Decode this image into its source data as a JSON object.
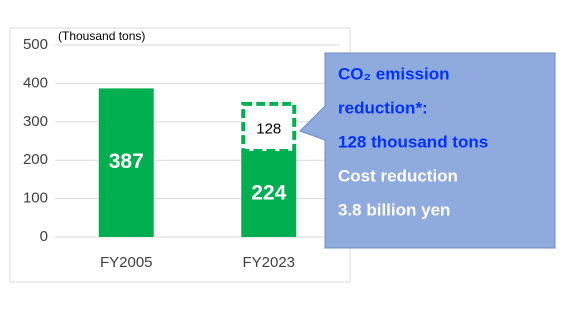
{
  "chart_data": {
    "type": "bar",
    "ylabel": "(Thousand tons)",
    "categories": [
      "FY2005",
      "FY2023"
    ],
    "series": [
      {
        "color": "#00b050",
        "values": [
          387,
          224
        ]
      },
      {
        "color": "#00b050",
        "fill": "#ffffff",
        "style": "dashed",
        "values": [
          null,
          128
        ]
      }
    ],
    "ylim": [
      0,
      500
    ],
    "yticks": [
      0,
      100,
      200,
      300,
      400,
      500
    ],
    "grid": true,
    "callout": {
      "fill": "#8faadc",
      "lines": [
        {
          "text": "CO₂ emission",
          "color": "#0033ff"
        },
        {
          "text": "reduction*:",
          "color": "#0033ff"
        },
        {
          "text": "128 thousand tons",
          "color": "#0033ff"
        },
        {
          "text": "Cost reduction",
          "color": "#ffffff"
        },
        {
          "text": "3.8 billion yen",
          "color": "#ffffff"
        }
      ]
    }
  }
}
